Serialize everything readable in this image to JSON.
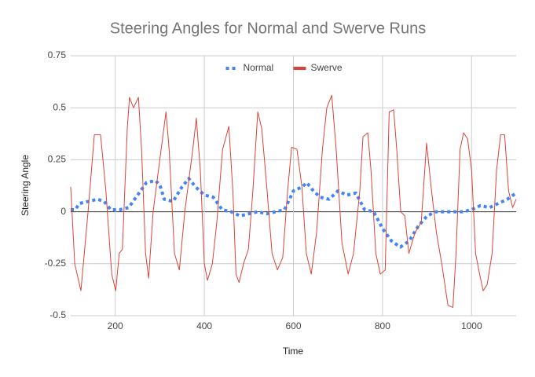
{
  "chart_data": {
    "type": "line",
    "title": "Steering Angles for Normal and Swerve Runs",
    "x_label": "Time",
    "y_label": "Steering Angle",
    "xlim": [
      100,
      1100
    ],
    "xticks": [
      200,
      400,
      600,
      800,
      1000
    ],
    "ylim": [
      -0.5,
      0.75
    ],
    "yticks": [
      -0.5,
      -0.25,
      0,
      0.25,
      0.5,
      0.75
    ],
    "grid": true,
    "legend": "top",
    "series": [
      {
        "name": "Normal",
        "color": "#4285f4",
        "style": "dotted",
        "x": [
          100,
          110,
          120,
          140,
          160,
          175,
          190,
          210,
          230,
          250,
          270,
          290,
          300,
          310,
          330,
          350,
          365,
          380,
          400,
          420,
          440,
          460,
          480,
          500,
          520,
          540,
          560,
          580,
          600,
          620,
          630,
          645,
          660,
          680,
          700,
          720,
          740,
          760,
          780,
          800,
          820,
          840,
          860,
          880,
          900,
          920,
          940,
          960,
          980,
          1000,
          1020,
          1040,
          1060,
          1080,
          1100
        ],
        "values": [
          0.01,
          0.01,
          0.04,
          0.05,
          0.06,
          0.05,
          0.01,
          0.01,
          0.02,
          0.08,
          0.14,
          0.15,
          0.13,
          0.06,
          0.05,
          0.12,
          0.16,
          0.12,
          0.08,
          0.07,
          0.01,
          0,
          -0.02,
          -0.01,
          0,
          -0.01,
          0,
          0.01,
          0.1,
          0.12,
          0.14,
          0.1,
          0.07,
          0.06,
          0.1,
          0.08,
          0.09,
          0.01,
          0,
          -0.08,
          -0.14,
          -0.17,
          -0.14,
          -0.07,
          -0.02,
          0,
          0,
          0,
          0,
          0.01,
          0.03,
          0.02,
          0.04,
          0.06,
          0.09
        ]
      },
      {
        "name": "Swerve",
        "color": "#db4437",
        "style": "solid",
        "x": [
          100,
          109,
          123,
          139,
          153,
          167,
          179,
          192,
          201,
          209,
          216,
          227,
          232,
          241,
          252,
          259,
          268,
          275,
          285,
          303,
          314,
          321,
          333,
          344,
          356,
          374,
          382,
          391,
          400,
          407,
          418,
          428,
          441,
          455,
          464,
          471,
          478,
          488,
          499,
          509,
          520,
          529,
          541,
          552,
          564,
          576,
          587,
          596,
          608,
          619,
          629,
          640,
          652,
          665,
          675,
          686,
          696,
          709,
          723,
          735,
          749,
          756,
          767,
          774,
          785,
          795,
          806,
          815,
          825,
          832,
          841,
          850,
          859,
          873,
          887,
          899,
          910,
          921,
          933,
          947,
          958,
          965,
          974,
          982,
          991,
          1000,
          1009,
          1018,
          1026,
          1035,
          1046,
          1056,
          1065,
          1074,
          1083,
          1092,
          1100
        ],
        "values": [
          0.12,
          -0.25,
          -0.38,
          0,
          0.37,
          0.37,
          0.1,
          -0.3,
          -0.38,
          -0.2,
          -0.18,
          0.4,
          0.55,
          0.5,
          0.55,
          0.3,
          -0.2,
          -0.32,
          0,
          0.3,
          0.48,
          0.3,
          -0.2,
          -0.28,
          0,
          0.3,
          0.45,
          0.2,
          -0.25,
          -0.33,
          -0.25,
          -0.05,
          0.3,
          0.41,
          0.1,
          -0.3,
          -0.34,
          -0.25,
          -0.18,
          0.1,
          0.48,
          0.4,
          0.1,
          -0.2,
          -0.28,
          -0.22,
          0.1,
          0.31,
          0.3,
          0.12,
          -0.2,
          -0.3,
          -0.1,
          0.3,
          0.5,
          0.56,
          0.3,
          -0.15,
          -0.3,
          -0.2,
          0.1,
          0.36,
          0.38,
          0.2,
          -0.2,
          -0.3,
          -0.28,
          0.48,
          0.49,
          0.3,
          0,
          -0.02,
          -0.2,
          -0.1,
          -0.05,
          0.33,
          0.1,
          -0.1,
          -0.25,
          -0.45,
          -0.46,
          -0.2,
          0.3,
          0.38,
          0.35,
          0.2,
          -0.2,
          -0.3,
          -0.38,
          -0.35,
          -0.2,
          0.2,
          0.37,
          0.37,
          0.1,
          0.02,
          0.06
        ]
      }
    ]
  }
}
